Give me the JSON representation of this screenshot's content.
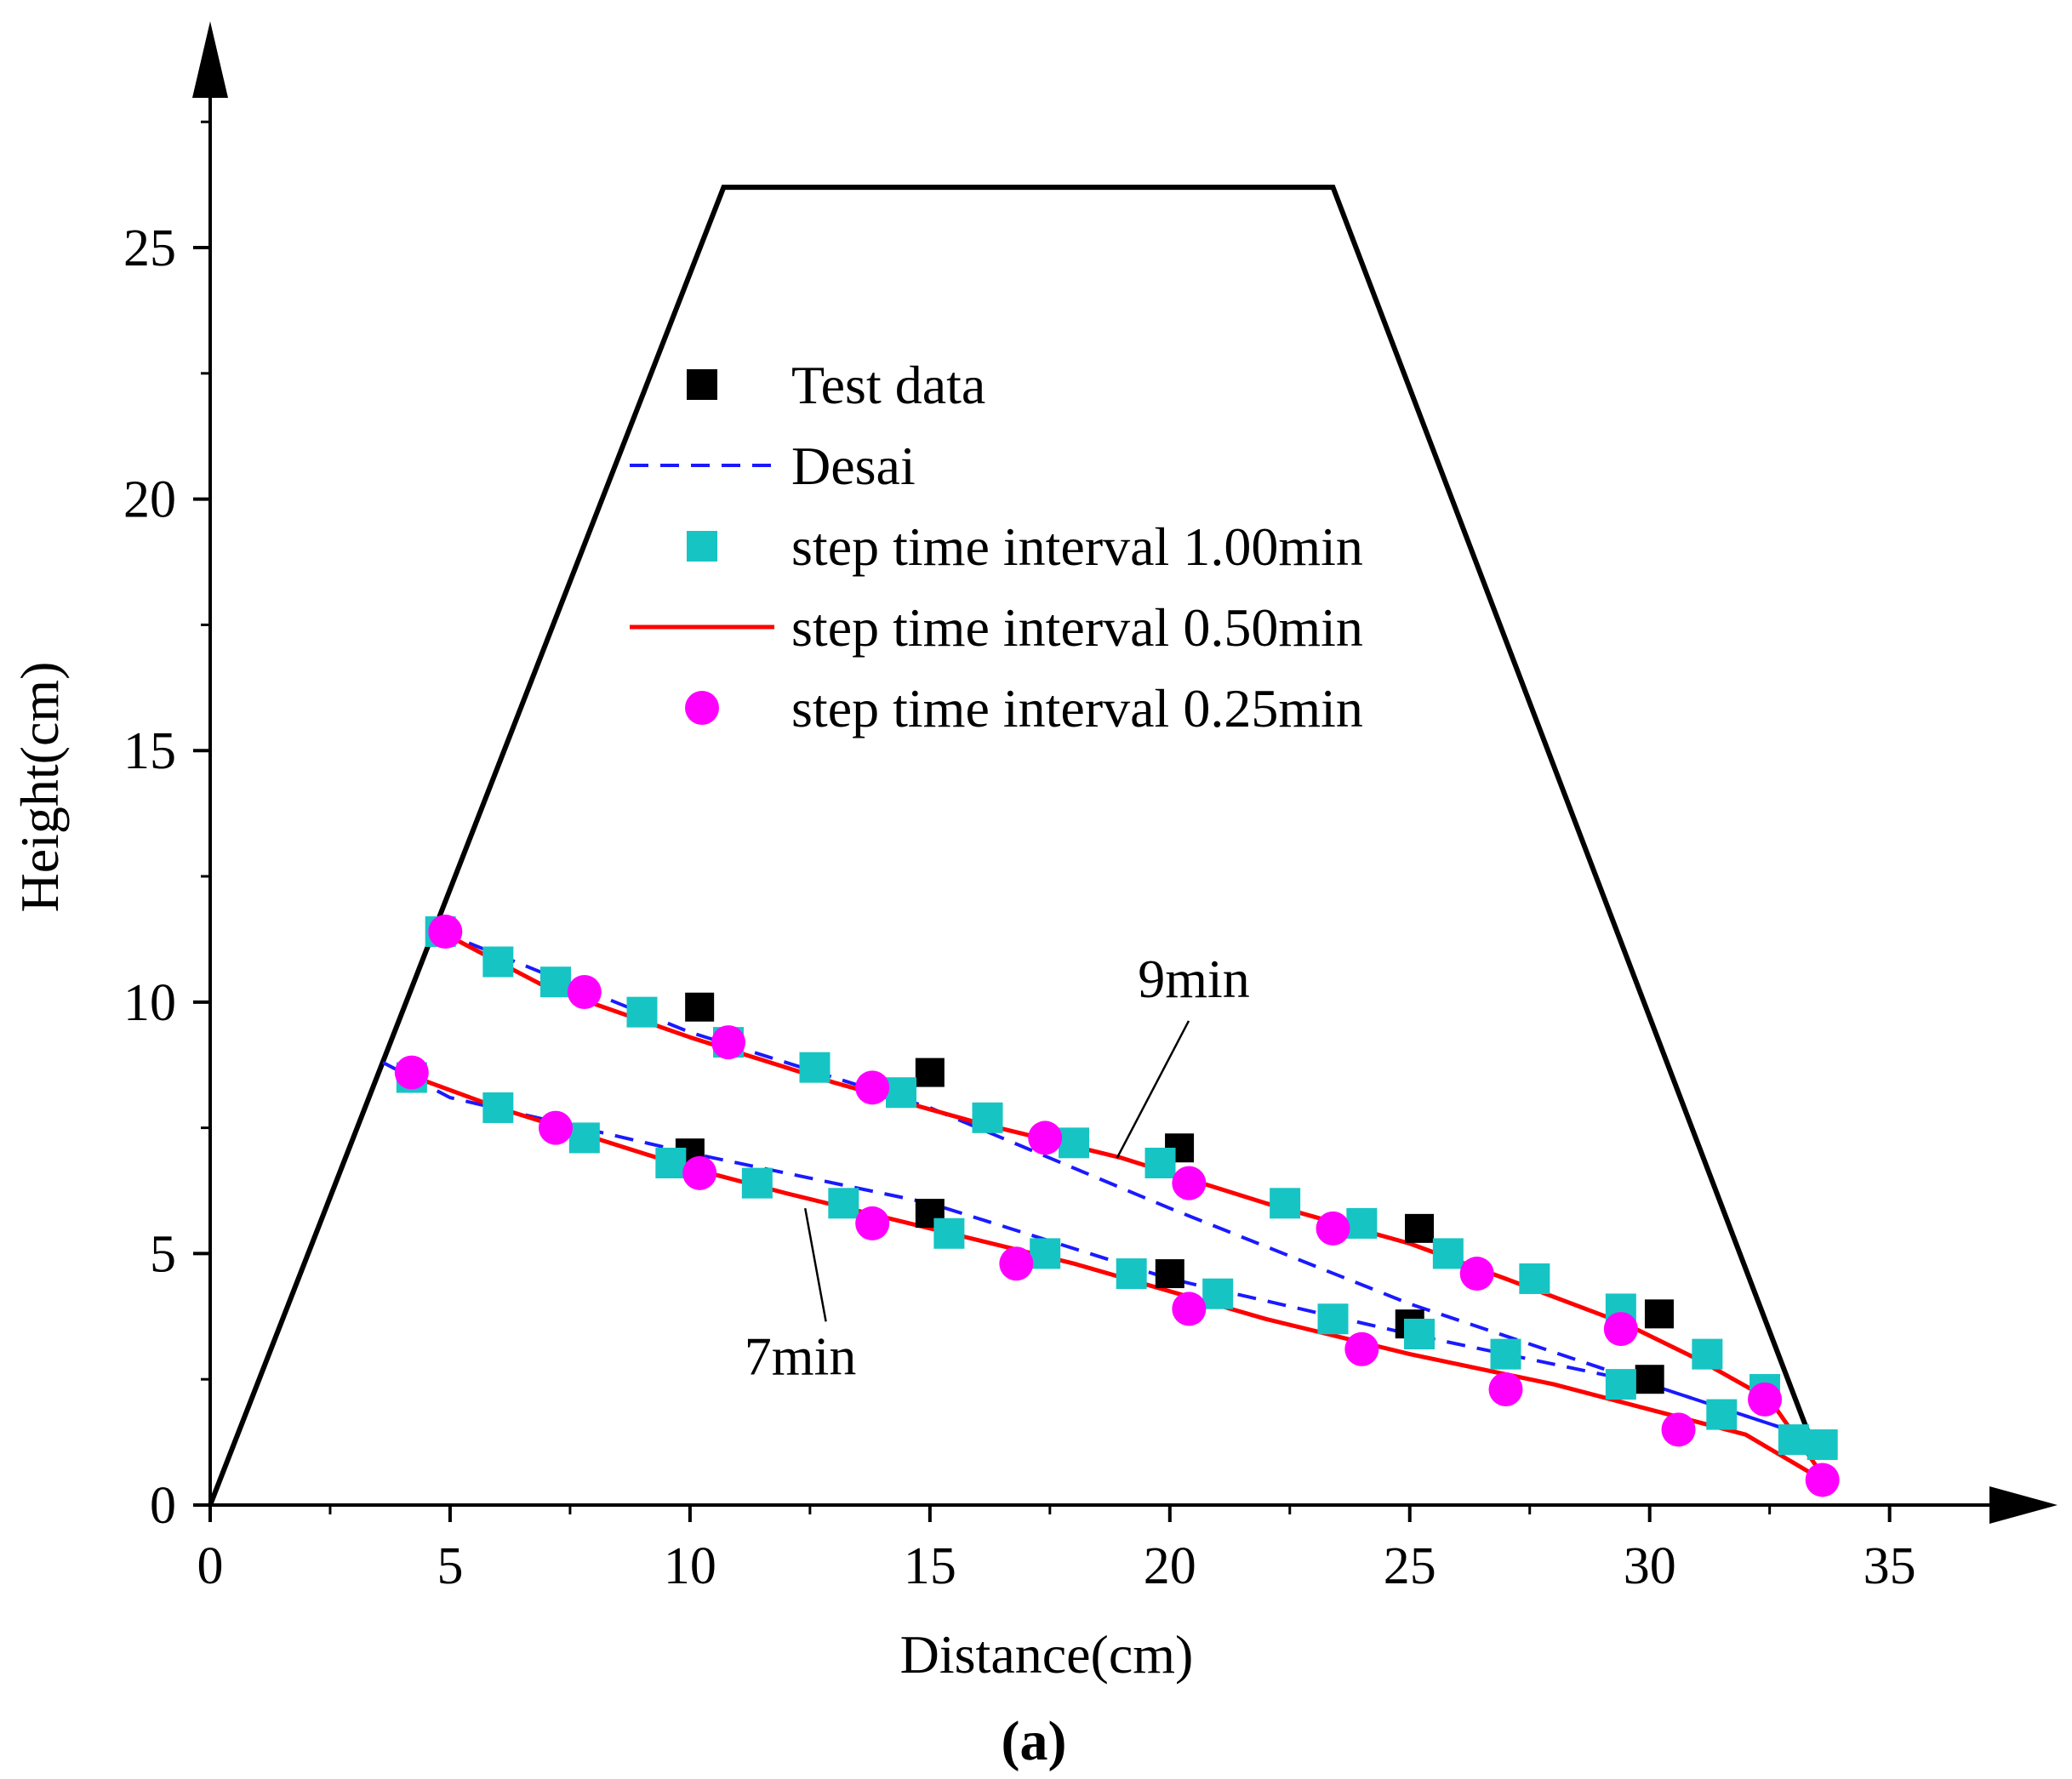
{
  "chart_data": {
    "type": "scatter",
    "xlabel": "Distance(cm)",
    "ylabel": "Height(cm)",
    "panel_label": "(a)",
    "xlim": [
      0,
      38.5
    ],
    "ylim": [
      0,
      29.5
    ],
    "xticks": [
      0,
      5,
      10,
      15,
      20,
      25,
      30,
      35
    ],
    "yticks": [
      0,
      5,
      10,
      15,
      20,
      25
    ],
    "grid": false,
    "legend_position": "upper-center",
    "legend": [
      "Test data",
      "Desai",
      "step time interval 1.00min",
      "step time interval 0.50min",
      "step time interval 0.25min"
    ],
    "annotations": [
      {
        "text": "9min",
        "x": 20.5,
        "y": 10.1,
        "target_x": 18.9,
        "target_y": 6.9
      },
      {
        "text": "7min",
        "x": 12.3,
        "y": 2.6,
        "target_x": 12.4,
        "target_y": 5.9
      }
    ],
    "colors": {
      "test": "#000000",
      "desai": "#1a1aff",
      "step100": "#17c4c4",
      "step050": "#ff0000",
      "step025": "#ff00ff",
      "profile": "#000000"
    },
    "series": [
      {
        "name": "Dam profile",
        "kind": "outline",
        "x": [
          0,
          10.7,
          23.4,
          33.4
        ],
        "y": [
          0,
          26.2,
          26.2,
          1.2
        ]
      },
      {
        "name": "Test data",
        "kind": "square-marker",
        "x": [
          10.2,
          15.0,
          20.2,
          25.2,
          30.2,
          10.0,
          15.0,
          20.0,
          25.0,
          30.0
        ],
        "y": [
          9.9,
          8.6,
          7.1,
          5.5,
          3.8,
          7.0,
          5.8,
          4.6,
          3.6,
          2.5
        ]
      },
      {
        "name": "Desai 9min",
        "kind": "dashed-line",
        "x": [
          4.8,
          10.0,
          15.0,
          20.0,
          25.0,
          30.0,
          33.5
        ],
        "y": [
          11.4,
          9.4,
          7.9,
          5.9,
          4.0,
          2.4,
          1.3
        ]
      },
      {
        "name": "Desai 7min",
        "kind": "dashed-line",
        "x": [
          3.6,
          5.0,
          10.0,
          15.0,
          20.0,
          25.0,
          30.0,
          33.5
        ],
        "y": [
          8.8,
          8.1,
          7.0,
          6.0,
          4.5,
          3.4,
          2.4,
          1.3
        ]
      },
      {
        "name": "step time interval 1.00min 9min",
        "kind": "square-marker",
        "x": [
          4.8,
          6.0,
          7.2,
          9.0,
          10.8,
          12.6,
          14.4,
          16.2,
          18.0,
          19.8,
          22.4,
          24.0,
          25.8,
          27.6,
          29.4,
          31.2,
          32.4,
          33.6
        ],
        "y": [
          11.4,
          10.8,
          10.4,
          9.8,
          9.2,
          8.7,
          8.2,
          7.7,
          7.2,
          6.8,
          6.0,
          5.6,
          5.0,
          4.5,
          3.9,
          3.0,
          2.3,
          1.2
        ]
      },
      {
        "name": "step time interval 1.00min 7min",
        "kind": "square-marker",
        "x": [
          4.2,
          6.0,
          7.8,
          9.6,
          11.4,
          13.2,
          15.4,
          17.4,
          19.2,
          21.0,
          23.4,
          25.2,
          27.0,
          29.4,
          31.5,
          33.0
        ],
        "y": [
          8.5,
          7.9,
          7.3,
          6.8,
          6.4,
          6.0,
          5.4,
          5.0,
          4.6,
          4.2,
          3.7,
          3.4,
          3.0,
          2.4,
          1.8,
          1.3
        ]
      },
      {
        "name": "step time interval 0.50min 9min",
        "kind": "solid-line",
        "x": [
          4.8,
          7.0,
          10.0,
          13.0,
          16.0,
          19.0,
          22.0,
          25.0,
          27.0,
          29.5,
          31.0,
          32.5,
          33.6
        ],
        "y": [
          11.4,
          10.3,
          9.3,
          8.4,
          7.6,
          6.9,
          6.0,
          5.2,
          4.5,
          3.6,
          2.9,
          2.1,
          0.6
        ]
      },
      {
        "name": "step time interval 0.50min 7min",
        "kind": "solid-line",
        "x": [
          4.0,
          6.0,
          8.0,
          10.0,
          12.0,
          15.0,
          18.0,
          22.0,
          25.0,
          28.0,
          30.0,
          32.0,
          33.6
        ],
        "y": [
          8.6,
          7.9,
          7.3,
          6.7,
          6.2,
          5.5,
          4.8,
          3.7,
          3.0,
          2.4,
          1.9,
          1.4,
          0.5
        ]
      },
      {
        "name": "step time interval 0.25min 9min",
        "kind": "circle-marker",
        "x": [
          4.9,
          7.8,
          10.8,
          13.8,
          17.4,
          20.4,
          23.4,
          26.4,
          29.4,
          32.4,
          33.6
        ],
        "y": [
          11.4,
          10.2,
          9.2,
          8.3,
          7.3,
          6.4,
          5.5,
          4.6,
          3.5,
          2.1,
          0.5
        ]
      },
      {
        "name": "step time interval 0.25min 7min",
        "kind": "circle-marker",
        "x": [
          4.2,
          7.2,
          10.2,
          13.8,
          16.8,
          20.4,
          24.0,
          27.0,
          30.6
        ],
        "y": [
          8.6,
          7.5,
          6.6,
          5.6,
          4.8,
          3.9,
          3.1,
          2.3,
          1.5
        ]
      }
    ]
  }
}
